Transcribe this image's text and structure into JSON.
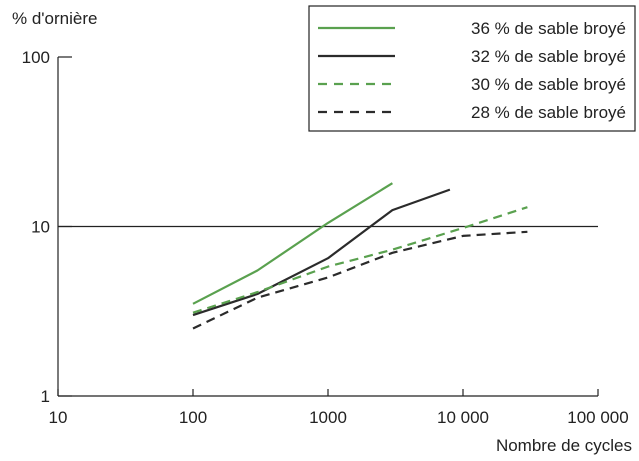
{
  "chart_data": {
    "type": "line",
    "xlabel": "Nombre de cycles",
    "ylabel": "% d'ornière",
    "xscale": "log",
    "yscale": "log",
    "xlim": [
      10,
      100000
    ],
    "ylim": [
      1,
      100
    ],
    "x_ticks": [
      {
        "value": 10,
        "label": "10"
      },
      {
        "value": 100,
        "label": "100"
      },
      {
        "value": 1000,
        "label": "1000"
      },
      {
        "value": 10000,
        "label": "10 000"
      },
      {
        "value": 100000,
        "label": "100 000"
      }
    ],
    "y_ticks": [
      {
        "value": 1,
        "label": "1"
      },
      {
        "value": 10,
        "label": "10"
      },
      {
        "value": 100,
        "label": "100"
      }
    ],
    "reference_line": {
      "y": 10
    },
    "grid": false,
    "legend": "top-right",
    "series": [
      {
        "name": "36 % de sable broyé",
        "color": "#5aa14f",
        "dash": "solid",
        "points": [
          [
            100,
            3.5
          ],
          [
            300,
            5.5
          ],
          [
            1000,
            10.5
          ],
          [
            3000,
            18
          ]
        ]
      },
      {
        "name": "32 % de sable broyé",
        "color": "#2b2b2b",
        "dash": "solid",
        "points": [
          [
            100,
            3.0
          ],
          [
            300,
            4.0
          ],
          [
            1000,
            6.5
          ],
          [
            3000,
            12.5
          ],
          [
            8000,
            16.5
          ]
        ]
      },
      {
        "name": "30 % de sable broyé",
        "color": "#5aa14f",
        "dash": "dashed",
        "points": [
          [
            100,
            3.1
          ],
          [
            300,
            4.1
          ],
          [
            1000,
            5.8
          ],
          [
            3000,
            7.3
          ],
          [
            10000,
            9.8
          ],
          [
            30000,
            13
          ]
        ]
      },
      {
        "name": "28 % de sable broyé",
        "color": "#2b2b2b",
        "dash": "dashed",
        "points": [
          [
            100,
            2.5
          ],
          [
            300,
            3.8
          ],
          [
            1000,
            5.0
          ],
          [
            3000,
            7.0
          ],
          [
            10000,
            8.8
          ],
          [
            30000,
            9.3
          ]
        ]
      }
    ]
  }
}
